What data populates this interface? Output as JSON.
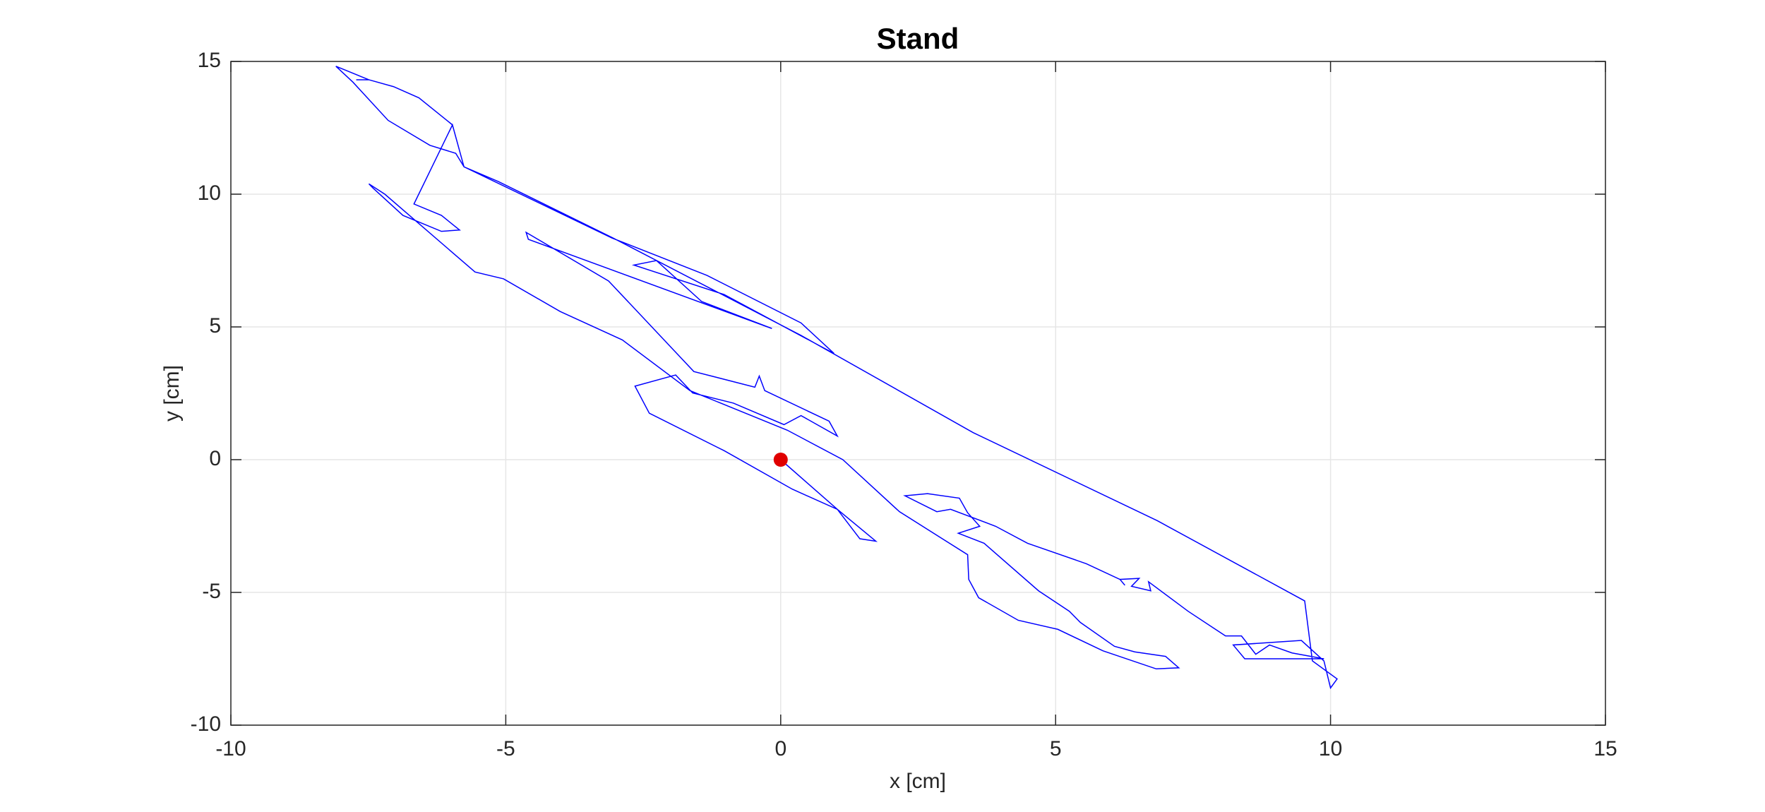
{
  "chart_data": {
    "type": "line",
    "title": "Stand",
    "xlabel": "x [cm]",
    "ylabel": "y [cm]",
    "xlim": [
      -10,
      15
    ],
    "ylim": [
      -10,
      15
    ],
    "xticks": [
      -10,
      -5,
      0,
      5,
      10,
      15
    ],
    "yticks": [
      -10,
      -5,
      0,
      5,
      10,
      15
    ],
    "grid": true,
    "series": [
      {
        "color": "#0000ff",
        "line": true,
        "marker": "none",
        "x": [
          0,
          1.03,
          1.73,
          1.44,
          1.03,
          0.21,
          -1.03,
          -2.39,
          -2.65,
          -1.91,
          -1.6,
          -0.86,
          0.06,
          0.37,
          1.03,
          0.88,
          -0.29,
          -0.39,
          -0.47,
          -1.58,
          -3.13,
          -4.63,
          -4.59,
          -0.16,
          -1.44,
          -2.26,
          -2.67,
          -1.03,
          0.97,
          0.37,
          -1.34,
          -3.07,
          -5.76,
          -5.97,
          -6.58,
          -7.04,
          -7.49,
          -7.72,
          -7.49,
          -8.09,
          -7.78,
          -7.14,
          -6.38,
          -5.91,
          -5.76,
          -5.97,
          -6.67,
          -6.17,
          -5.84,
          -6.17,
          -6.87,
          -7.41,
          -7.49,
          -7.2,
          -5.56,
          -5.04,
          -4.01,
          -2.88,
          -1.65,
          0.12,
          1.13,
          2.16,
          3.4,
          3.42,
          3.6,
          4.32,
          5.04,
          5.86,
          6.83,
          7.24,
          7,
          6.44,
          6.07,
          5.45,
          5.25,
          4.69,
          3.7,
          3.23,
          3.62,
          3.4,
          3.25,
          2.67,
          2.26,
          2.84,
          3.09,
          3.91,
          4.49,
          5.56,
          6.17,
          6.26,
          6.17,
          6.52,
          6.38,
          6.73,
          6.69,
          7.41,
          8.09,
          8.38,
          8.64,
          8.89,
          9.3,
          9.88,
          8.44,
          8.23,
          9.47,
          9.88,
          10,
          10.12,
          9.67,
          9.53,
          6.85,
          3.5,
          0.37,
          -3.05,
          -5.14,
          -5.76
        ],
        "values": [
          0,
          -1.87,
          -3.07,
          -2.98,
          -1.87,
          -1.11,
          0.34,
          1.75,
          2.77,
          3.19,
          2.51,
          2.13,
          1.32,
          1.66,
          0.89,
          1.45,
          2.6,
          3.15,
          2.73,
          3.32,
          6.73,
          8.56,
          8.3,
          4.94,
          5.96,
          7.5,
          7.33,
          6.22,
          4,
          5.15,
          6.94,
          8.35,
          11.03,
          12.61,
          13.63,
          14.05,
          14.31,
          14.31,
          14.31,
          14.82,
          14.22,
          12.78,
          11.84,
          11.54,
          11.03,
          12.61,
          9.63,
          9.2,
          8.65,
          8.6,
          9.2,
          10.22,
          10.39,
          10,
          7.07,
          6.81,
          5.58,
          4.51,
          2.6,
          1.11,
          0,
          -1.96,
          -3.58,
          -4.51,
          -5.2,
          -6.05,
          -6.39,
          -7.2,
          -7.88,
          -7.84,
          -7.41,
          -7.24,
          -7.03,
          -6.13,
          -5.71,
          -4.94,
          -3.15,
          -2.77,
          -2.51,
          -2,
          -1.45,
          -1.28,
          -1.36,
          -1.96,
          -1.87,
          -2.51,
          -3.15,
          -3.92,
          -4.51,
          -4.73,
          -4.51,
          -4.47,
          -4.77,
          -4.94,
          -4.6,
          -5.71,
          -6.64,
          -6.64,
          -7.33,
          -6.98,
          -7.28,
          -7.5,
          -7.5,
          -6.98,
          -6.81,
          -7.58,
          -8.6,
          -8.26,
          -7.58,
          -5.32,
          -2.3,
          1.02,
          4.68,
          8.35,
          10.48,
          11.03
        ]
      },
      {
        "color": "#e00000",
        "line": false,
        "marker": "circle",
        "x": [
          0
        ],
        "values": [
          0
        ]
      }
    ]
  }
}
